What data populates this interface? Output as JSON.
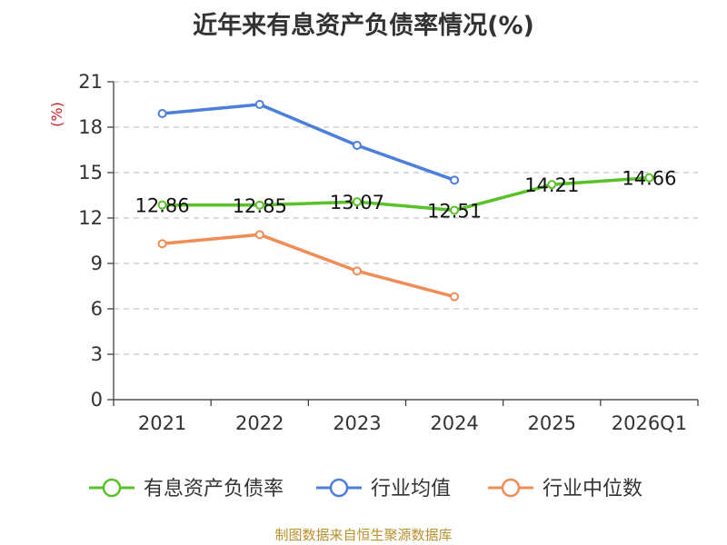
{
  "title": "近年来有息资产负债率情况(%)",
  "source": "制图数据来自恒生聚源数据库",
  "chart_data": {
    "type": "line",
    "title": "近年来有息资产负债率情况(%)",
    "ylabel": "(%)",
    "xlabel": "",
    "categories": [
      "2021",
      "2022",
      "2023",
      "2024",
      "2025",
      "2026Q1"
    ],
    "ylim": [
      0,
      21
    ],
    "yticks": [
      0,
      3,
      6,
      9,
      12,
      15,
      18,
      21
    ],
    "grid": true,
    "legend_position": "bottom",
    "series": [
      {
        "name": "有息资产负债率",
        "color": "#5ac229",
        "values": [
          12.86,
          12.85,
          13.07,
          12.51,
          14.21,
          14.66
        ],
        "labels": [
          "12.86",
          "12.85",
          "13.07",
          "12.51",
          "14.21",
          "14.66"
        ]
      },
      {
        "name": "行业均值",
        "color": "#4c7fdb",
        "values": [
          18.9,
          19.5,
          16.8,
          14.5,
          null,
          null
        ]
      },
      {
        "name": "行业中位数",
        "color": "#f08c56",
        "values": [
          10.3,
          10.9,
          8.5,
          6.8,
          null,
          null
        ]
      }
    ]
  }
}
